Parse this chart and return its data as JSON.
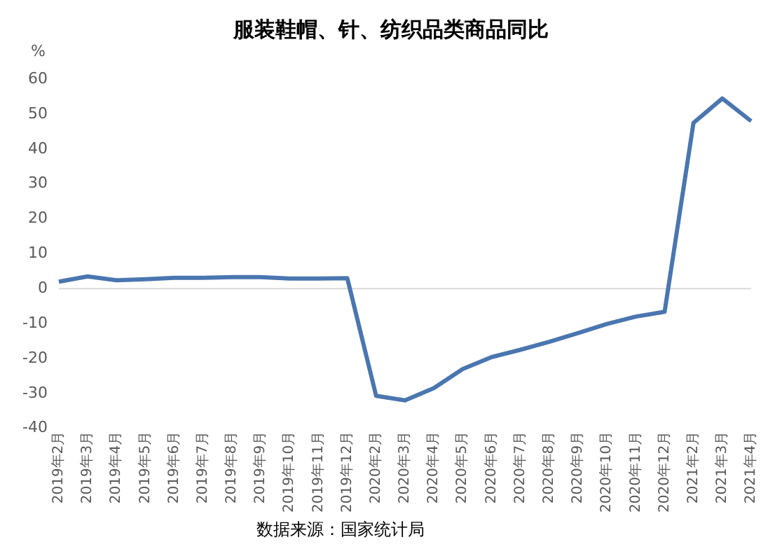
{
  "chart_data": {
    "type": "line",
    "title": "服装鞋帽、针、纺织品类商品同比",
    "ylabel": "%",
    "categories": [
      "2019年2月",
      "2019年3月",
      "2019年4月",
      "2019年5月",
      "2019年6月",
      "2019年7月",
      "2019年8月",
      "2019年9月",
      "2019年10月",
      "2019年11月",
      "2019年12月",
      "2020年2月",
      "2020年3月",
      "2020年4月",
      "2020年5月",
      "2020年6月",
      "2020年7月",
      "2020年8月",
      "2020年9月",
      "2020年10月",
      "2020年11月",
      "2020年12月",
      "2021年2月",
      "2021年3月",
      "2021年4月"
    ],
    "series": [
      {
        "color": "#4a76b0",
        "values": [
          2,
          3.5,
          2.4,
          2.7,
          3.1,
          3.1,
          3.3,
          3.3,
          2.9,
          2.9,
          3,
          -30.7,
          -32,
          -28.5,
          -23,
          -19.6,
          -17.5,
          -15.2,
          -12.7,
          -10.1,
          -8,
          -6.6,
          47.5,
          54.5,
          48
        ]
      }
    ],
    "ylim": [
      -40,
      60
    ],
    "yticks": [
      -40,
      -30,
      -20,
      -10,
      0,
      10,
      20,
      30,
      40,
      50,
      60
    ],
    "grid": false,
    "ref_lines": [
      {
        "axis": "y",
        "value": 0,
        "color": "#d9d9d9",
        "line_style": "solid"
      }
    ],
    "legend": false,
    "marker": "none",
    "line_style": "solid",
    "annotations": [
      "数据来源：国家统计局"
    ]
  }
}
